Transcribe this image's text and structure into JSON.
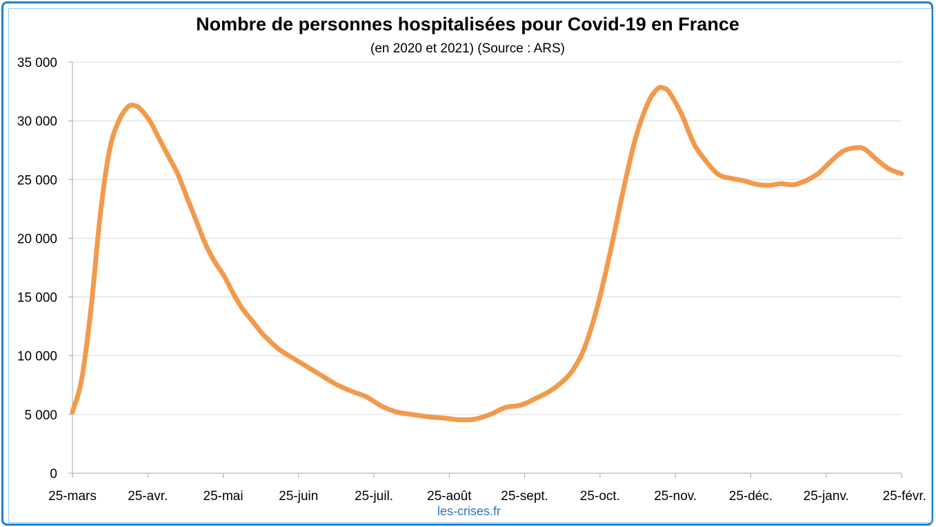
{
  "chart_data": {
    "type": "line",
    "title": "Nombre de personnes hospitalisées pour Covid-19 en France",
    "subtitle": "(en 2020 et 2021) (Source : ARS)",
    "credit": "les-crises.fr",
    "xlabel": "",
    "ylabel": "",
    "ylim": [
      0,
      35000
    ],
    "yticks": [
      0,
      5000,
      10000,
      15000,
      20000,
      25000,
      30000,
      35000
    ],
    "ytick_labels": [
      "0",
      "5 000",
      "10 000",
      "15 000",
      "20 000",
      "25 000",
      "30 000",
      "35 000"
    ],
    "xtick_labels": [
      "25-mars",
      "25-avr.",
      "25-mai",
      "25-juin",
      "25-juil.",
      "25-août",
      "25-sept.",
      "25-oct.",
      "25-nov.",
      "25-déc.",
      "25-janv.",
      "25-févr."
    ],
    "grid": true,
    "line_color": "#f29a4c",
    "series": [
      {
        "values": [
          [
            0,
            5200
          ],
          [
            3,
            8000
          ],
          [
            6,
            14000
          ],
          [
            9,
            22000
          ],
          [
            12,
            27500
          ],
          [
            15,
            30000
          ],
          [
            18,
            31200
          ],
          [
            20,
            31300
          ],
          [
            22,
            31000
          ],
          [
            25,
            30000
          ],
          [
            28,
            28500
          ],
          [
            31,
            27000
          ],
          [
            34,
            25500
          ],
          [
            37,
            23500
          ],
          [
            40,
            21500
          ],
          [
            43,
            19500
          ],
          [
            46,
            18000
          ],
          [
            49,
            16800
          ],
          [
            52,
            15300
          ],
          [
            55,
            14000
          ],
          [
            58,
            13000
          ],
          [
            61,
            12000
          ],
          [
            64,
            11200
          ],
          [
            67,
            10500
          ],
          [
            70,
            10000
          ],
          [
            75,
            9200
          ],
          [
            80,
            8400
          ],
          [
            85,
            7600
          ],
          [
            90,
            7000
          ],
          [
            95,
            6500
          ],
          [
            100,
            5700
          ],
          [
            105,
            5200
          ],
          [
            110,
            5000
          ],
          [
            115,
            4800
          ],
          [
            120,
            4700
          ],
          [
            125,
            4550
          ],
          [
            130,
            4600
          ],
          [
            135,
            5000
          ],
          [
            140,
            5600
          ],
          [
            145,
            5800
          ],
          [
            150,
            6400
          ],
          [
            155,
            7100
          ],
          [
            160,
            8200
          ],
          [
            163,
            9300
          ],
          [
            166,
            11000
          ],
          [
            170,
            14500
          ],
          [
            174,
            19000
          ],
          [
            178,
            24000
          ],
          [
            182,
            28500
          ],
          [
            186,
            31500
          ],
          [
            189,
            32700
          ],
          [
            191,
            32800
          ],
          [
            193,
            32400
          ],
          [
            197,
            30500
          ],
          [
            201,
            28000
          ],
          [
            205,
            26500
          ],
          [
            209,
            25400
          ],
          [
            213,
            25100
          ],
          [
            217,
            24900
          ],
          [
            221,
            24600
          ],
          [
            225,
            24500
          ],
          [
            229,
            24650
          ],
          [
            233,
            24550
          ],
          [
            237,
            24900
          ],
          [
            241,
            25500
          ],
          [
            245,
            26500
          ],
          [
            249,
            27400
          ],
          [
            253,
            27700
          ],
          [
            256,
            27600
          ],
          [
            260,
            26700
          ],
          [
            264,
            25900
          ],
          [
            268,
            25500
          ]
        ]
      }
    ]
  }
}
